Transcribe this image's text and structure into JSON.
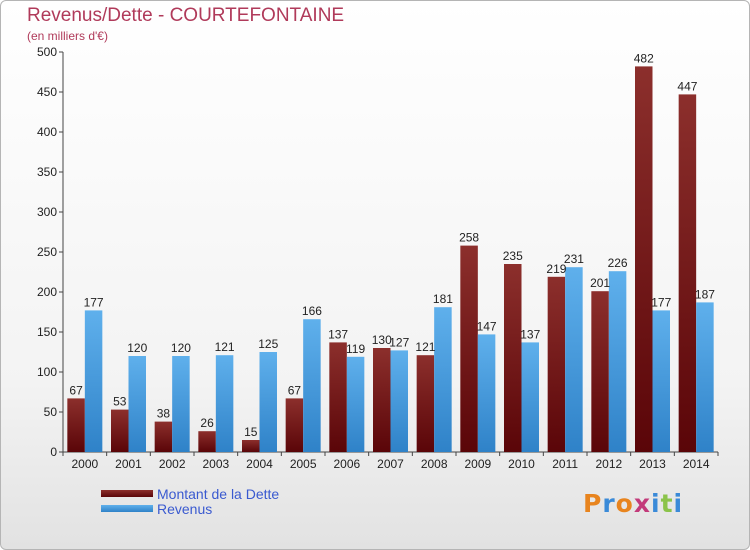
{
  "header": {
    "title": "Revenus/Dette - COURTEFONTAINE",
    "subtitle": "(en milliers d'€)"
  },
  "brand": {
    "letters": [
      "P",
      "r",
      "o",
      "x",
      "i",
      "t",
      "i"
    ],
    "colors": [
      "#e8841e",
      "#3a8ad8",
      "#e8841e",
      "#c33a7a",
      "#3a8ad8",
      "#8bc34a",
      "#3a8ad8"
    ]
  },
  "colors": {
    "dette": "#6e0f12",
    "dette_light": "#9a3b36",
    "revenus": "#3f94d8",
    "revenus_light": "#6cb4ea",
    "axis": "#444444",
    "grid": "#d8d8d8"
  },
  "chart_data": {
    "type": "bar",
    "title": "Revenus/Dette - COURTEFONTAINE",
    "subtitle": "(en milliers d'€)",
    "xlabel": "",
    "ylabel": "",
    "ylim": [
      0,
      500
    ],
    "yticks": [
      0,
      50,
      100,
      150,
      200,
      250,
      300,
      350,
      400,
      450,
      500
    ],
    "grid": false,
    "legend_position": "bottom-left",
    "categories": [
      "2000",
      "2001",
      "2002",
      "2003",
      "2004",
      "2005",
      "2006",
      "2007",
      "2008",
      "2009",
      "2010",
      "2011",
      "2012",
      "2013",
      "2014"
    ],
    "series": [
      {
        "name": "Montant de la Dette",
        "values": [
          67,
          53,
          38,
          26,
          15,
          67,
          137,
          130,
          121,
          258,
          235,
          219,
          201,
          482,
          447
        ]
      },
      {
        "name": "Revenus",
        "values": [
          177,
          120,
          120,
          121,
          125,
          166,
          119,
          127,
          181,
          147,
          137,
          231,
          226,
          177,
          187
        ]
      }
    ]
  }
}
